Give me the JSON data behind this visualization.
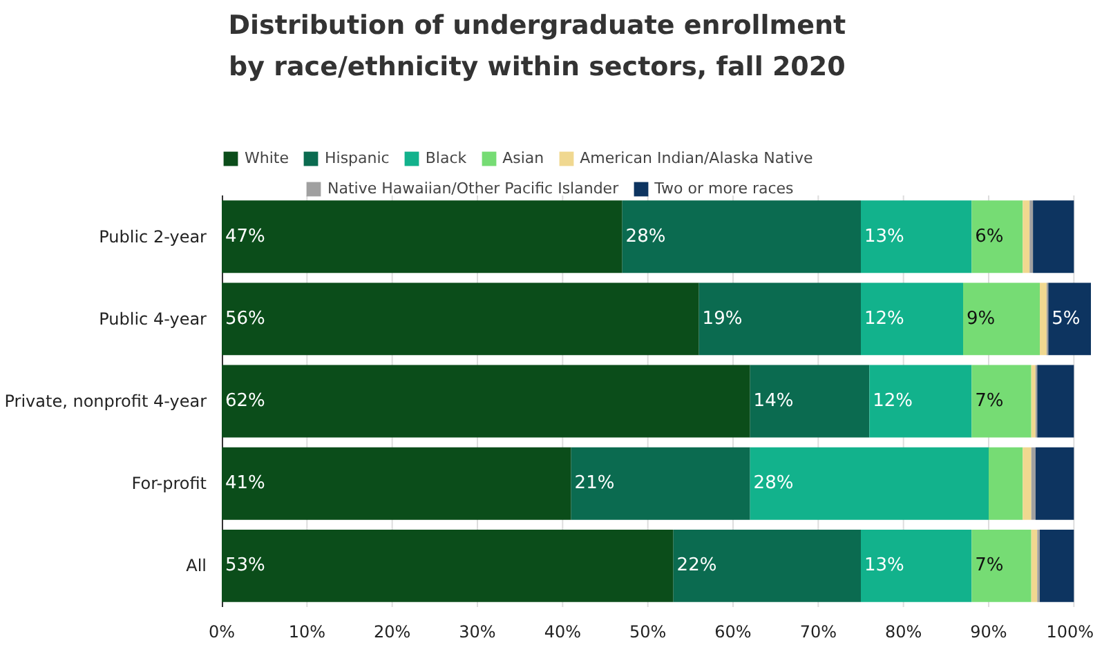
{
  "chart_data": {
    "type": "bar",
    "orientation": "horizontal",
    "stacked": true,
    "title": "Distribution of undergraduate enrollment by race/ethnicity within sectors, fall 2020",
    "categories": [
      "Public 2-year",
      "Public 4-year",
      "Private, nonprofit 4-year",
      "For-profit",
      "All"
    ],
    "series": [
      {
        "name": "White",
        "color": "#0b4d1a",
        "values": [
          47,
          56,
          62,
          41,
          53
        ],
        "value_labels": [
          "47%",
          "56%",
          "62%",
          "41%",
          "53%"
        ]
      },
      {
        "name": "Hispanic",
        "color": "#0b6b50",
        "values": [
          28,
          19,
          14,
          21,
          22
        ],
        "value_labels": [
          "28%",
          "19%",
          "14%",
          "21%",
          "22%"
        ]
      },
      {
        "name": "Black",
        "color": "#12b28c",
        "values": [
          13,
          12,
          12,
          28,
          13
        ],
        "value_labels": [
          "13%",
          "12%",
          "12%",
          "28%",
          "13%"
        ]
      },
      {
        "name": "Asian",
        "color": "#76dc74",
        "values": [
          6,
          9,
          7,
          4,
          7
        ],
        "value_labels": [
          "6%",
          "9%",
          "7%",
          null,
          "7%"
        ]
      },
      {
        "name": "American Indian/Alaska Native",
        "color": "#f0d890",
        "values": [
          0.8,
          0.8,
          0.5,
          1,
          0.7
        ],
        "value_labels": [
          null,
          null,
          null,
          null,
          null
        ]
      },
      {
        "name": "Native Hawaiian/Other Pacific Islander",
        "color": "#a0a0a0",
        "values": [
          0.4,
          0.2,
          0.2,
          0.5,
          0.3
        ],
        "value_labels": [
          null,
          null,
          null,
          null,
          null
        ]
      },
      {
        "name": "Two or more races",
        "color": "#0d3460",
        "values": [
          4.8,
          5,
          4.3,
          4.5,
          4
        ],
        "value_labels": [
          null,
          "5%",
          null,
          null,
          null
        ]
      }
    ],
    "xlim": [
      0,
      102
    ],
    "xticks": [
      {
        "value": 0,
        "label": "0%"
      },
      {
        "value": 10,
        "label": "10%"
      },
      {
        "value": 20,
        "label": "20%"
      },
      {
        "value": 30,
        "label": "30%"
      },
      {
        "value": 40,
        "label": "40%"
      },
      {
        "value": 50,
        "label": "50%"
      },
      {
        "value": 60,
        "label": "60%"
      },
      {
        "value": 70,
        "label": "70%"
      },
      {
        "value": 80,
        "label": "80%"
      },
      {
        "value": 90,
        "label": "90%"
      },
      {
        "value": 100,
        "label": "100%"
      }
    ],
    "grid": "x",
    "legend": "top"
  }
}
